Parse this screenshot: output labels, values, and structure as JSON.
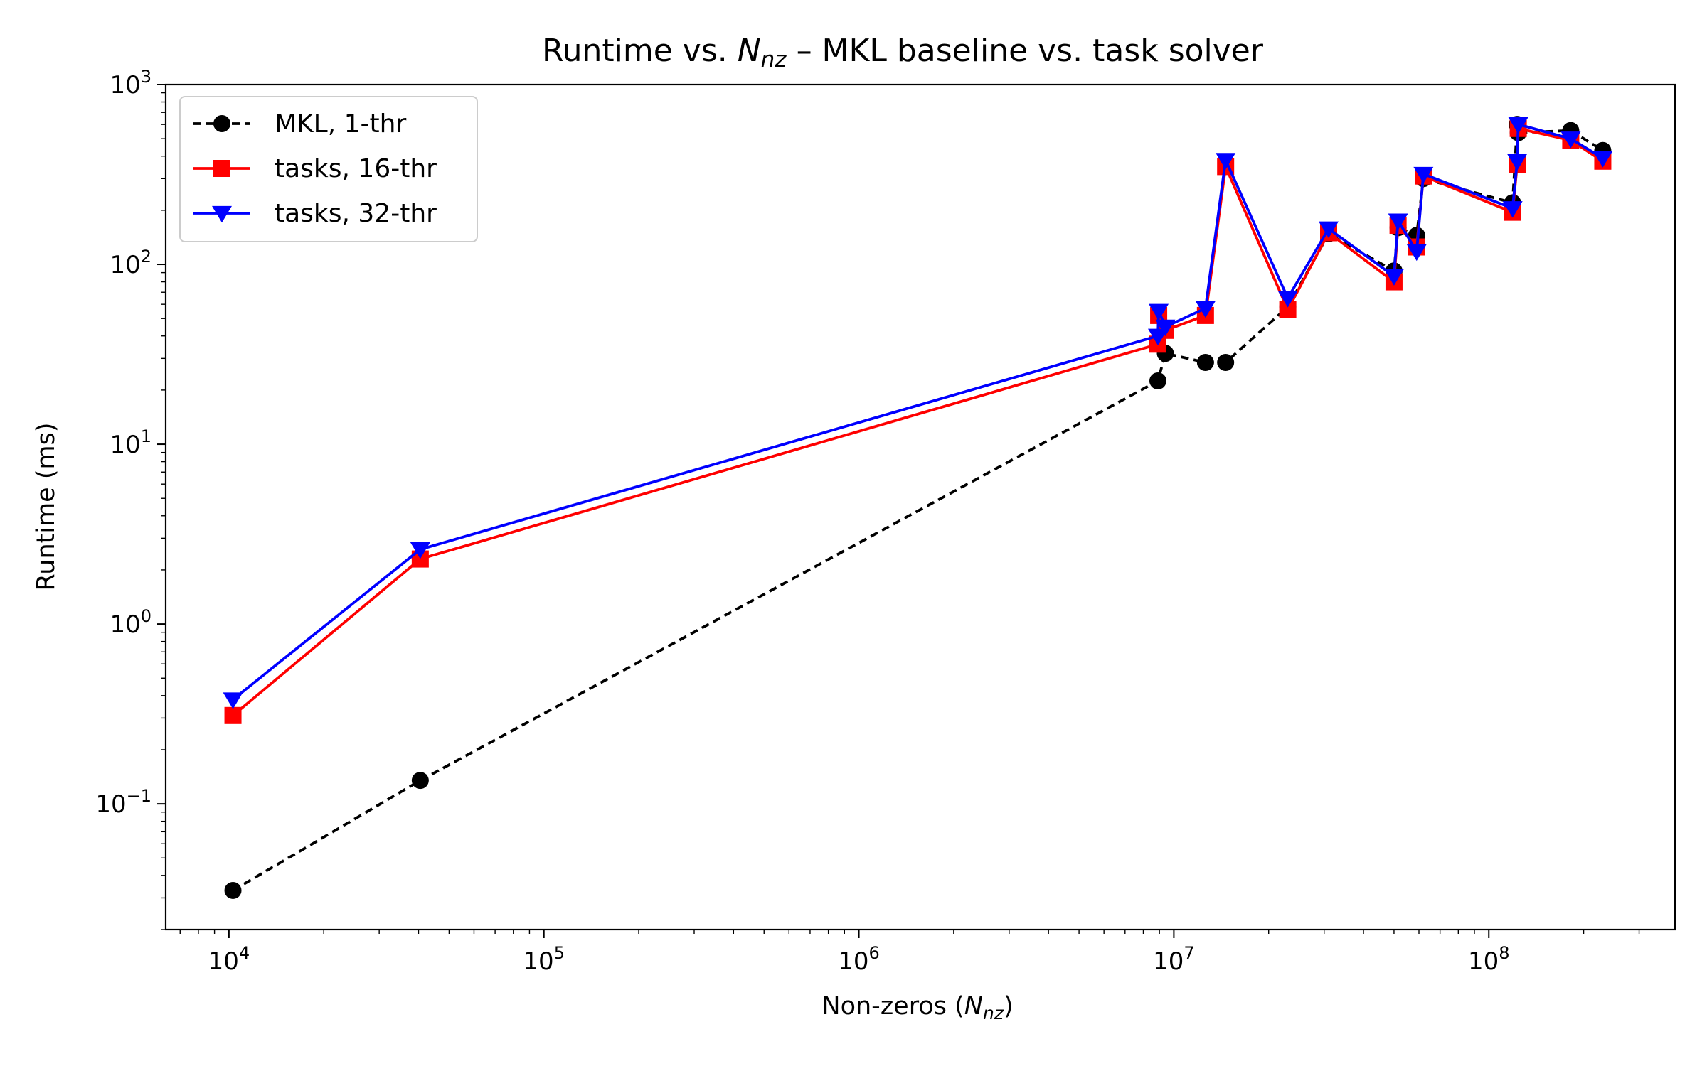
{
  "chart_data": {
    "type": "line",
    "title": "Runtime vs. N_nz – MKL baseline vs. task solver",
    "title_parts": {
      "before": "Runtime vs. ",
      "math_main": "N",
      "math_sub": "nz",
      "after": " – MKL baseline vs. task solver"
    },
    "xlabel": "Non-zeros (N_nz)",
    "xlabel_parts": {
      "before": "Non-zeros (",
      "math_main": "N",
      "math_sub": "nz",
      "after": ")"
    },
    "ylabel": "Runtime (ms)",
    "xscale": "log",
    "yscale": "log",
    "xlim": [
      6300,
      390000000
    ],
    "ylim": [
      0.02,
      1000
    ],
    "x_major_ticks": [
      {
        "value": 10000,
        "base": "10",
        "exp": "4"
      },
      {
        "value": 100000,
        "base": "10",
        "exp": "5"
      },
      {
        "value": 1000000,
        "base": "10",
        "exp": "6"
      },
      {
        "value": 10000000,
        "base": "10",
        "exp": "7"
      },
      {
        "value": 100000000,
        "base": "10",
        "exp": "8"
      }
    ],
    "y_major_ticks": [
      {
        "value": 0.1,
        "base": "10",
        "exp": "−1"
      },
      {
        "value": 1,
        "base": "10",
        "exp": "0"
      },
      {
        "value": 10,
        "base": "10",
        "exp": "1"
      },
      {
        "value": 100,
        "base": "10",
        "exp": "2"
      },
      {
        "value": 1000,
        "base": "10",
        "exp": "3"
      }
    ],
    "grid": false,
    "legend_position": "top-left",
    "series": [
      {
        "name": "MKL, 1-thr",
        "color": "#000000",
        "linestyle": "dashed",
        "marker": "circle",
        "x": [
          10300,
          40500,
          8900000,
          9400000,
          12600000,
          14600000,
          23000000,
          31000000,
          50000000,
          51500000,
          59000000,
          62000000,
          119000000,
          123000000,
          124000000,
          182000000,
          230000000
        ],
        "y": [
          0.033,
          0.135,
          22.5,
          32,
          28.5,
          28.5,
          58,
          148,
          92,
          160,
          145,
          300,
          220,
          600,
          540,
          555,
          430
        ]
      },
      {
        "name": "tasks, 16-thr",
        "color": "#ff0000",
        "linestyle": "solid",
        "marker": "square",
        "x": [
          10300,
          40500,
          8900000,
          8950000,
          9400000,
          12600000,
          14600000,
          23000000,
          31000000,
          50000000,
          51500000,
          59000000,
          62000000,
          119000000,
          123000000,
          124000000,
          182000000,
          230000000
        ],
        "y": [
          0.31,
          2.3,
          36,
          52,
          43,
          52,
          350,
          56,
          150,
          80,
          165,
          125,
          310,
          195,
          360,
          570,
          490,
          375
        ]
      },
      {
        "name": "tasks, 32-thr",
        "color": "#0000ff",
        "linestyle": "solid",
        "marker": "triangle-down",
        "x": [
          10300,
          40500,
          8900000,
          8950000,
          9400000,
          12600000,
          14600000,
          23000000,
          31000000,
          50000000,
          51500000,
          59000000,
          62000000,
          119000000,
          123000000,
          124000000,
          182000000,
          230000000
        ],
        "y": [
          0.38,
          2.6,
          40,
          55,
          45,
          57,
          380,
          65,
          158,
          86,
          175,
          118,
          318,
          205,
          375,
          600,
          500,
          390
        ]
      }
    ]
  }
}
